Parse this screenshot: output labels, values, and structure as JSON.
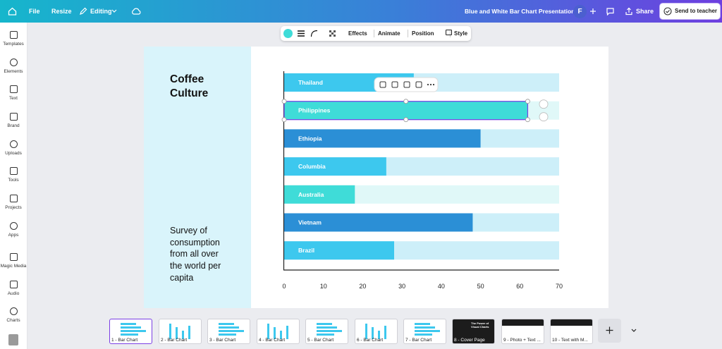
{
  "top_bar": {
    "menu": [
      "File",
      "Resize",
      "Editing"
    ],
    "doc_title": "Blue and White Bar Chart Presentation",
    "avatar": "F",
    "share": "Share",
    "send": "Send to teacher"
  },
  "sidebar": [
    "Templates",
    "Elements",
    "Text",
    "Brand",
    "Uploads",
    "Tools",
    "Projects",
    "Apps",
    "Magic Media",
    "Audio",
    "Charts"
  ],
  "toolbar": [
    "Effects",
    "Animate",
    "Position",
    "Style"
  ],
  "slide": {
    "title": "Coffee Culture",
    "description": "Survey of consumption from all over the world per capita"
  },
  "chart_data": {
    "type": "bar",
    "orientation": "horizontal",
    "categories": [
      "Thailand",
      "Philippines",
      "Ethiopia",
      "Columbia",
      "Australia",
      "Vietnam",
      "Brazil"
    ],
    "values": [
      33,
      62,
      50,
      26,
      18,
      48,
      28
    ],
    "colors": [
      "#3dc8ee",
      "#3fdcd8",
      "#2b8fd6",
      "#3dc8ee",
      "#3fdcd8",
      "#2b8fd6",
      "#3dc8ee"
    ],
    "track_colors": [
      "#cdeff9",
      "#e0f8f8",
      "#cdeff9",
      "#cdeff9",
      "#e0f8f8",
      "#cdeff9",
      "#cdeff9"
    ],
    "xlim": [
      0,
      70
    ],
    "xticks": [
      0,
      10,
      20,
      30,
      40,
      50,
      60,
      70
    ],
    "grid": false
  },
  "pages": [
    "1 - Bar Chart",
    "2 - Bar Chart",
    "3 - Bar Chart",
    "4 - Bar Chart",
    "5 - Bar Chart",
    "6 - Bar Chart",
    "7 - Bar Chart",
    "8 - Cover Page",
    "9 - Photo + Text ...",
    "10 - Text with M..."
  ],
  "cover_preview": "The Power of Visual Charts"
}
